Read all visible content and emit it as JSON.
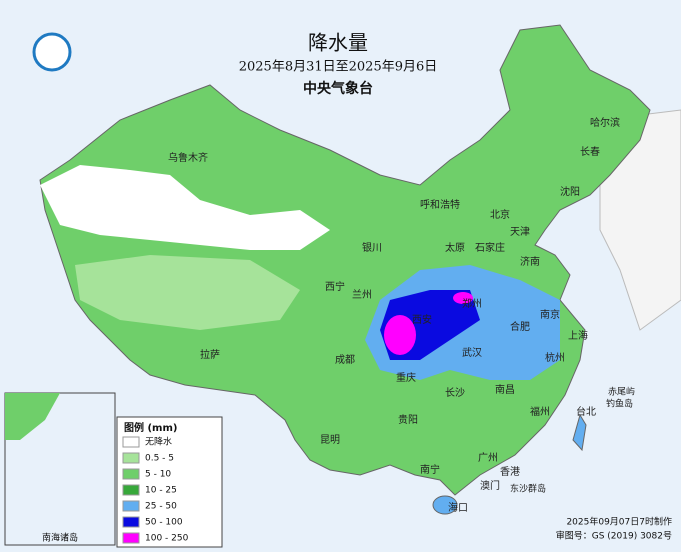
{
  "header": {
    "title": "降水量",
    "subtitle": "2025年8月31日至2025年9月6日",
    "org": "中央气象台"
  },
  "legend": {
    "title": "图例 (mm)",
    "items": [
      {
        "label": "无降水",
        "color": "#ffffff"
      },
      {
        "label": "0.5 - 5",
        "color": "#a6e39a"
      },
      {
        "label": "5 - 10",
        "color": "#6fcf6a"
      },
      {
        "label": "10 - 25",
        "color": "#37a83a"
      },
      {
        "label": "25 - 50",
        "color": "#62aef0"
      },
      {
        "label": "50 - 100",
        "color": "#0a0ae0"
      },
      {
        "label": "100 - 250",
        "color": "#ff00ff"
      }
    ]
  },
  "cities": [
    "乌鲁木齐",
    "哈尔滨",
    "长春",
    "沈阳",
    "呼和浩特",
    "北京",
    "天津",
    "石家庄",
    "太原",
    "银川",
    "济南",
    "西宁",
    "兰州",
    "郑州",
    "西安",
    "合肥",
    "南京",
    "上海",
    "武汉",
    "成都",
    "重庆",
    "拉萨",
    "长沙",
    "杭州",
    "南昌",
    "福州",
    "台北",
    "贵阳",
    "昆明",
    "南宁",
    "广州",
    "香港",
    "澳门",
    "海口",
    "赤尾屿",
    "钓鱼岛",
    "东沙群岛"
  ],
  "inset": {
    "label": "南海诸岛"
  },
  "footer": {
    "made": "2025年09月07日7时制作",
    "approval": "审图号：GS (2019) 3082号"
  }
}
